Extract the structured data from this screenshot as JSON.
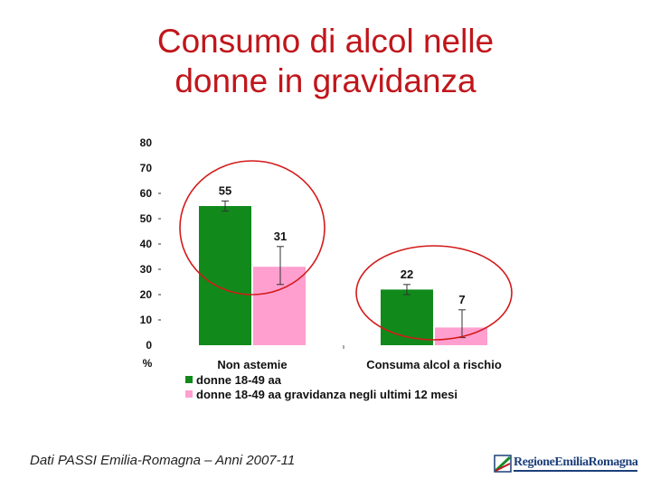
{
  "title_line1": "Consumo di alcol nelle",
  "title_line2": "donne in gravidanza",
  "footer": "Dati PASSI Emilia-Romagna – Anni 2007-11",
  "logo_text": "RegioneEmiliaRomagna",
  "colors": {
    "title": "#c0161b",
    "series1": "#118a1b",
    "series2": "#ff9fcf",
    "circle": "#d41a1a"
  },
  "chart_data": {
    "type": "bar",
    "categories": [
      "Non astemie",
      "Consuma alcol a rischio"
    ],
    "series": [
      {
        "name": "donne 18-49 aa",
        "values": [
          55,
          22
        ],
        "error": [
          [
            53,
            57
          ],
          [
            20,
            24
          ]
        ]
      },
      {
        "name": "donne 18-49 aa gravidanza negli ultimi 12 mesi",
        "values": [
          31,
          7
        ],
        "error": [
          [
            24,
            39
          ],
          [
            3,
            14
          ]
        ]
      }
    ],
    "data_labels": [
      [
        "55",
        "31"
      ],
      [
        "22",
        "7"
      ]
    ],
    "y_ticks": [
      "80",
      "70",
      "60",
      "50",
      "40",
      "30",
      "20",
      "10",
      "0"
    ],
    "y_unit": "%",
    "ylim": [
      0,
      80
    ],
    "legend_position": "bottom",
    "grid": false,
    "annotations": "red circles around each category group"
  }
}
